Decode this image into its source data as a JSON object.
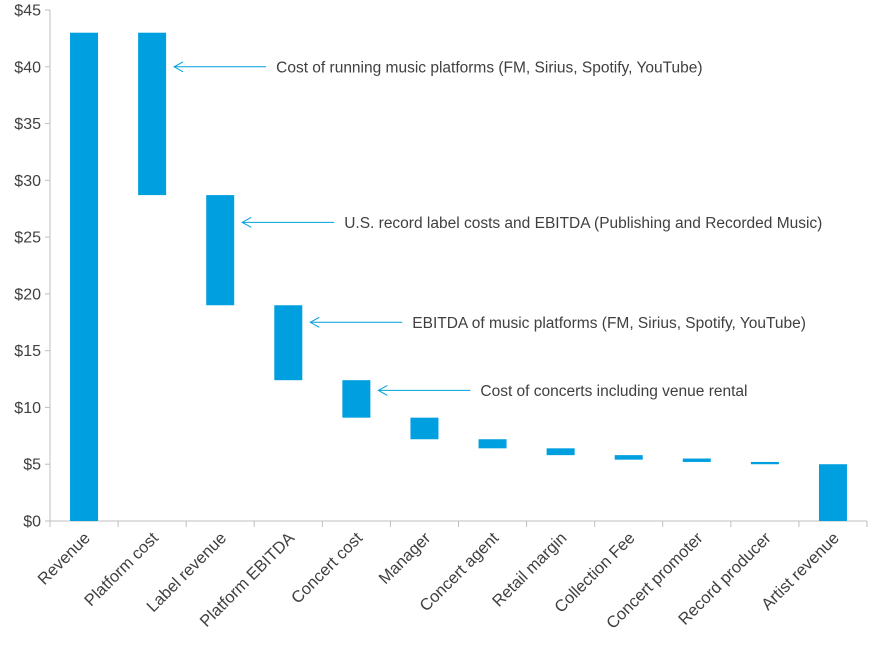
{
  "chart_data": {
    "type": "bar",
    "subtype": "waterfall",
    "title": "",
    "xlabel": "",
    "ylabel": "",
    "ylim": [
      0,
      45
    ],
    "y_ticks": [
      "$0",
      "$5",
      "$10",
      "$15",
      "$20",
      "$25",
      "$30",
      "$35",
      "$40",
      "$45"
    ],
    "categories": [
      "Revenue",
      "Platform cost",
      "Label revenue",
      "Platform EBITDA",
      "Concert cost",
      "Manager",
      "Concert agent",
      "Retail margin",
      "Collection  Fee",
      "Concert promoter",
      "Record producer",
      "Artist revenue"
    ],
    "bars": [
      {
        "low": 0,
        "high": 43.0
      },
      {
        "low": 28.7,
        "high": 43.0
      },
      {
        "low": 19.0,
        "high": 28.7
      },
      {
        "low": 12.4,
        "high": 19.0
      },
      {
        "low": 9.1,
        "high": 12.4
      },
      {
        "low": 7.2,
        "high": 9.1
      },
      {
        "low": 6.4,
        "high": 7.2
      },
      {
        "low": 5.8,
        "high": 6.4
      },
      {
        "low": 5.4,
        "high": 5.8
      },
      {
        "low": 5.2,
        "high": 5.5
      },
      {
        "low": 5.0,
        "high": 5.2
      },
      {
        "low": 0,
        "high": 5.0
      }
    ],
    "bar_color": "#009fdf",
    "grid": false,
    "legend": "none",
    "annotations": [
      {
        "text": "Cost of running  music platforms (FM, Sirius, Spotify, YouTube)",
        "target_category_index": 1,
        "target_value": 40.0
      },
      {
        "text": "U.S. record label costs and EBITDA (Publishing and Recorded Music)",
        "target_category_index": 2,
        "target_value": 26.3
      },
      {
        "text": "EBITDA of music platforms (FM, Sirius, Spotify, YouTube)",
        "target_category_index": 3,
        "target_value": 17.5
      },
      {
        "text": "Cost of concerts including venue rental",
        "target_category_index": 4,
        "target_value": 11.5
      }
    ],
    "annotation_color": "#009fdf",
    "axis_color": "#bfbfbf",
    "text_color": "#404040"
  }
}
